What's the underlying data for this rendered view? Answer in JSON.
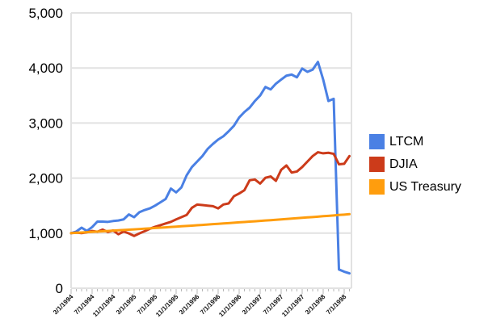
{
  "chart_data": {
    "type": "line",
    "title": "",
    "xlabel": "",
    "ylabel": "",
    "ylim": [
      0,
      5000
    ],
    "y_ticks": [
      "0",
      "1,000",
      "2,000",
      "3,000",
      "4,000",
      "5,000"
    ],
    "x_tick_every": 4,
    "grid": "horizontal",
    "legend_position": "right",
    "x": [
      "3/1/1994",
      "4/1/1994",
      "5/1/1994",
      "6/1/1994",
      "7/1/1994",
      "8/1/1994",
      "9/1/1994",
      "10/1/1994",
      "11/1/1994",
      "12/1/1994",
      "1/1/1995",
      "2/1/1995",
      "3/1/1995",
      "4/1/1995",
      "5/1/1995",
      "6/1/1995",
      "7/1/1995",
      "8/1/1995",
      "9/1/1995",
      "10/1/1995",
      "11/1/1995",
      "12/1/1995",
      "1/1/1996",
      "2/1/1996",
      "3/1/1996",
      "4/1/1996",
      "5/1/1996",
      "6/1/1996",
      "7/1/1996",
      "8/1/1996",
      "9/1/1996",
      "10/1/1996",
      "11/1/1996",
      "12/1/1996",
      "1/1/1997",
      "2/1/1997",
      "3/1/1997",
      "4/1/1997",
      "5/1/1997",
      "6/1/1997",
      "7/1/1997",
      "8/1/1997",
      "9/1/1997",
      "10/1/1997",
      "11/1/1997",
      "12/1/1997",
      "1/1/1998",
      "2/1/1998",
      "3/1/1998",
      "4/1/1998",
      "5/1/1998",
      "6/1/1998",
      "7/1/1998",
      "8/1/1998"
    ],
    "series": [
      {
        "name": "LTCM",
        "color": "#4a80e4",
        "values": [
          1000,
          1030,
          1100,
          1040,
          1110,
          1210,
          1210,
          1205,
          1220,
          1230,
          1250,
          1340,
          1290,
          1380,
          1420,
          1450,
          1500,
          1560,
          1620,
          1810,
          1740,
          1830,
          2050,
          2200,
          2300,
          2400,
          2530,
          2620,
          2700,
          2760,
          2850,
          2950,
          3100,
          3200,
          3280,
          3400,
          3500,
          3655,
          3610,
          3715,
          3790,
          3860,
          3880,
          3830,
          3990,
          3930,
          3970,
          4110,
          3790,
          3400,
          3440,
          340,
          300,
          270
        ]
      },
      {
        "name": "DJIA",
        "color": "#cc3b1a",
        "values": [
          1000,
          1010,
          1000,
          1015,
          1040,
          1025,
          1065,
          1020,
          1050,
          980,
          1030,
          995,
          950,
          995,
          1035,
          1080,
          1115,
          1145,
          1175,
          1205,
          1250,
          1290,
          1330,
          1460,
          1520,
          1510,
          1500,
          1490,
          1450,
          1520,
          1540,
          1670,
          1720,
          1780,
          1960,
          1975,
          1900,
          2005,
          2030,
          1950,
          2150,
          2230,
          2100,
          2120,
          2200,
          2300,
          2400,
          2470,
          2450,
          2460,
          2440,
          2250,
          2260,
          2400
        ]
      },
      {
        "name": "US Treasury",
        "color": "#ff9d0d",
        "values": [
          1000,
          1006,
          1011,
          1017,
          1023,
          1028,
          1034,
          1040,
          1046,
          1052,
          1057,
          1063,
          1069,
          1075,
          1081,
          1087,
          1094,
          1100,
          1106,
          1112,
          1118,
          1125,
          1131,
          1137,
          1144,
          1150,
          1156,
          1163,
          1169,
          1176,
          1183,
          1189,
          1196,
          1202,
          1209,
          1216,
          1223,
          1230,
          1236,
          1243,
          1250,
          1257,
          1264,
          1272,
          1279,
          1286,
          1293,
          1300,
          1308,
          1315,
          1322,
          1330,
          1337,
          1345
        ]
      }
    ]
  }
}
